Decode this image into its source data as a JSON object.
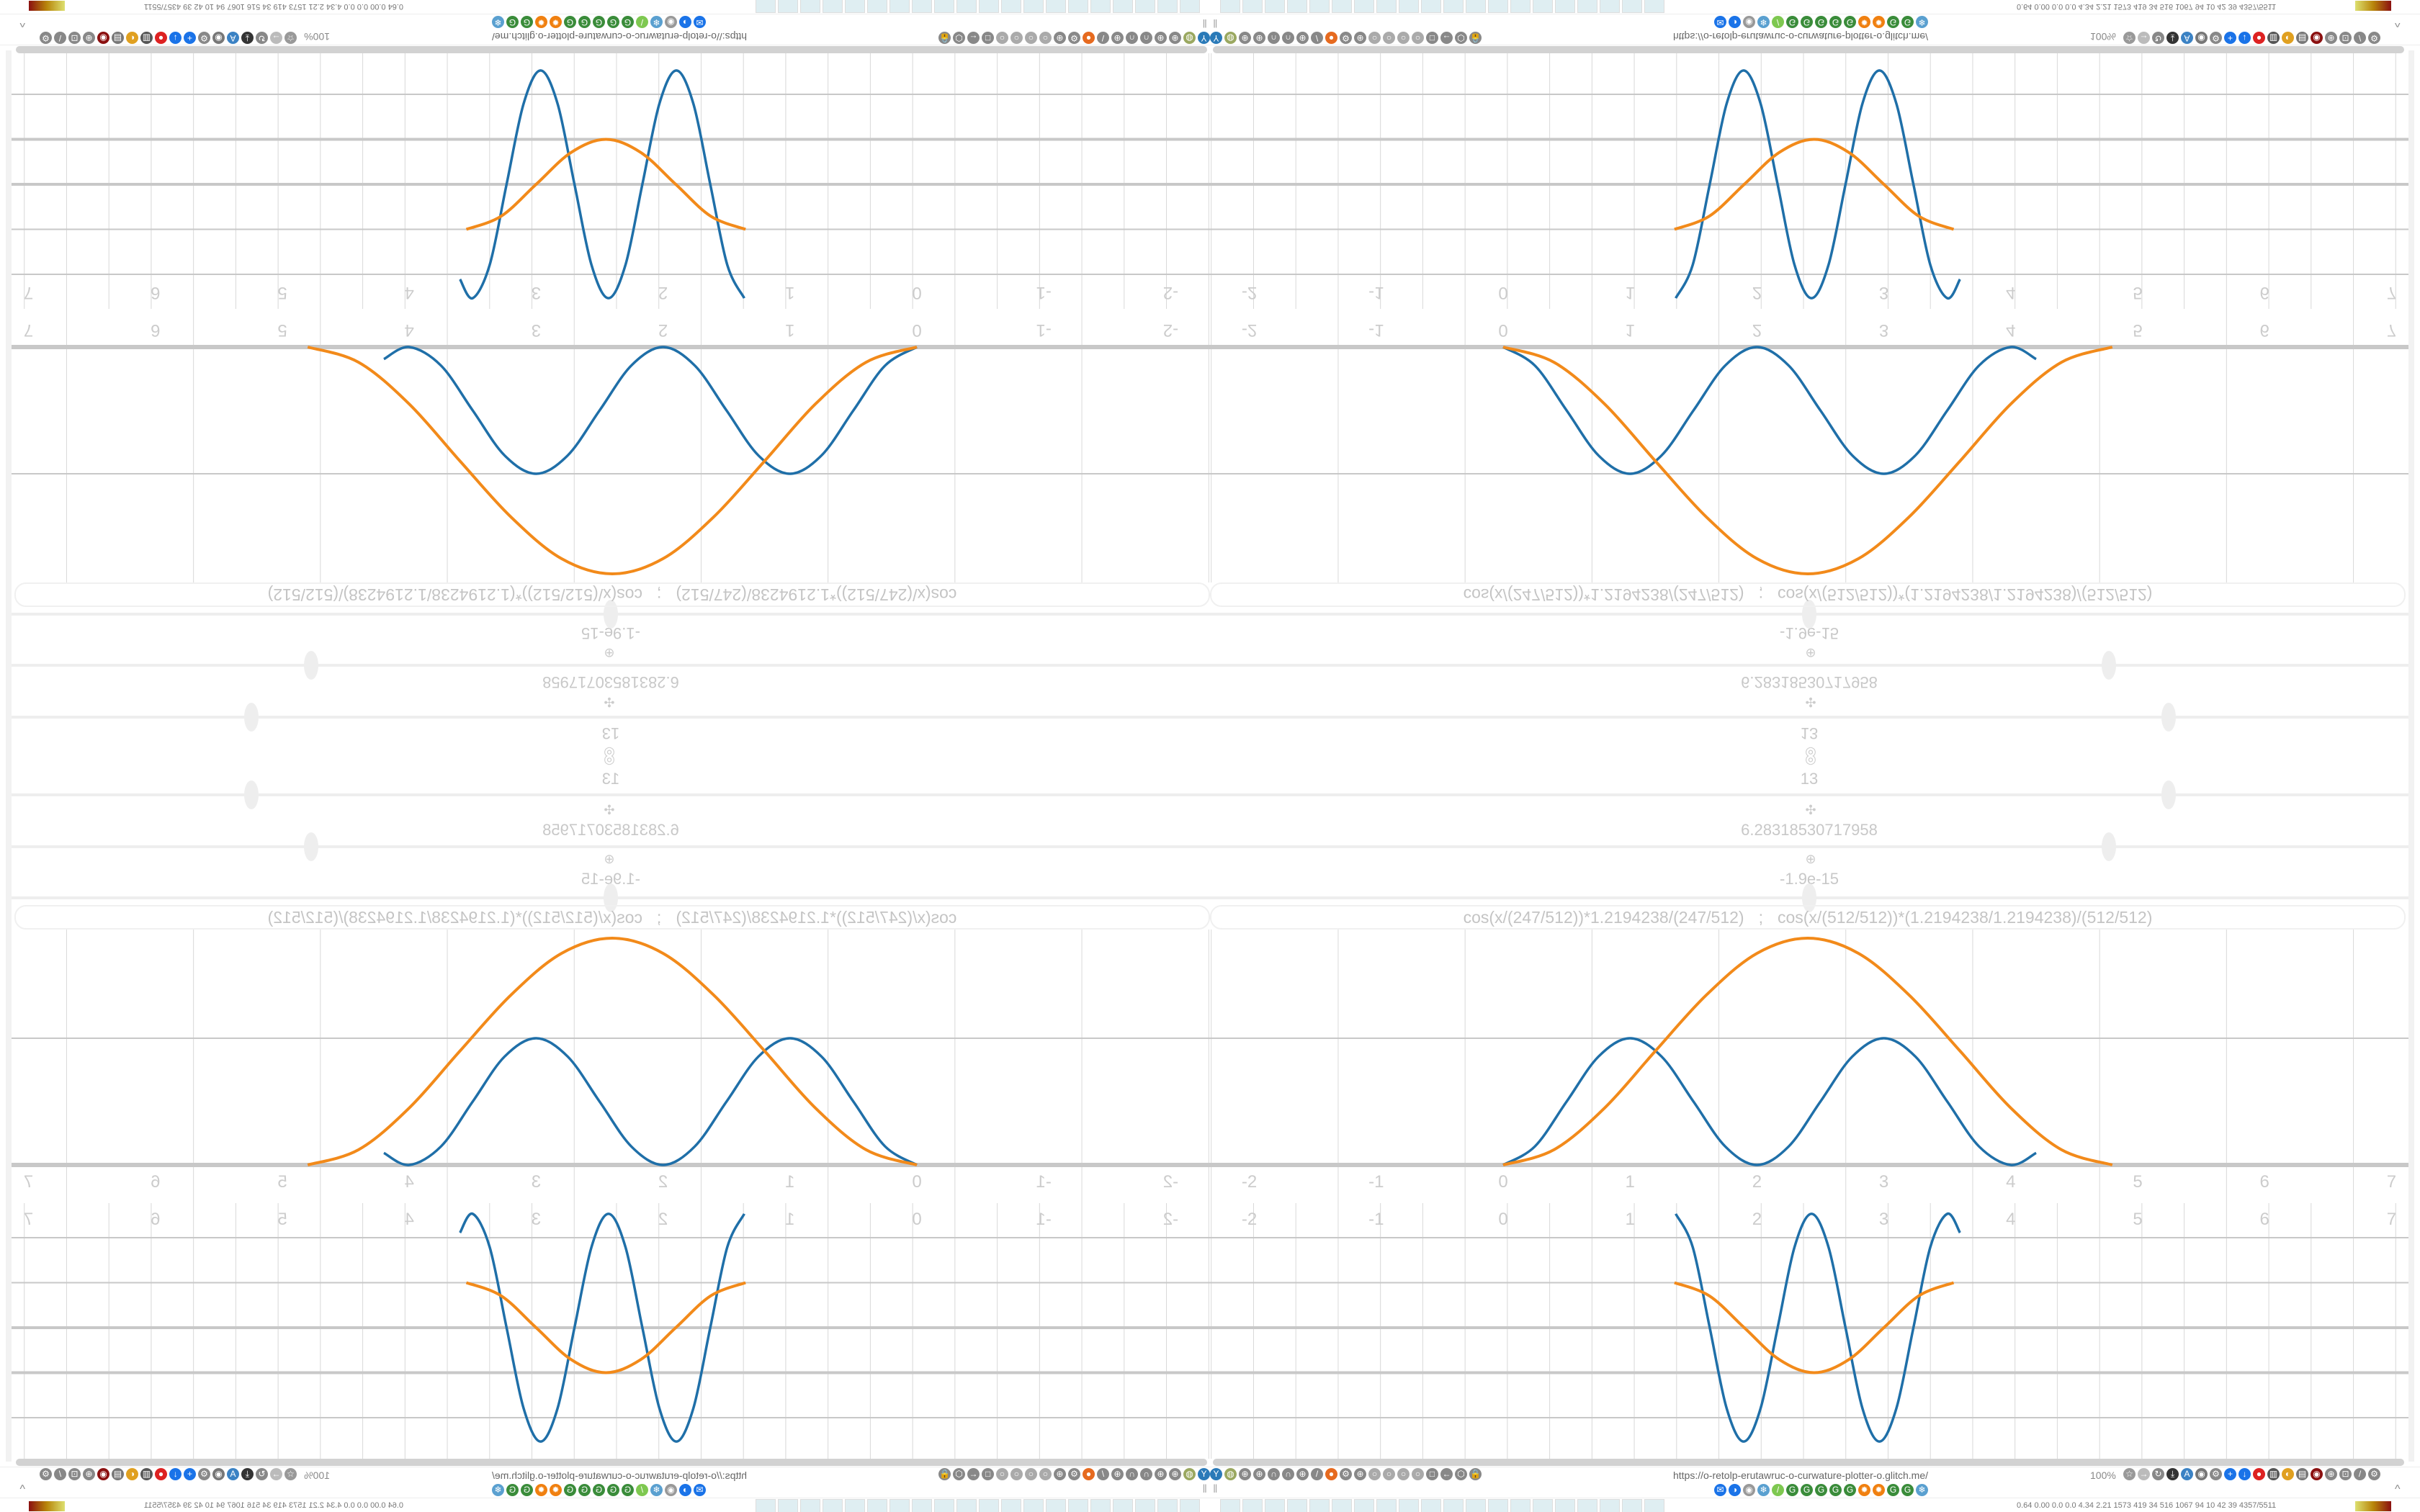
{
  "app": {
    "url": "https://o-retolp-erutawruc-o-curwature-plotter-o.glitch.me/",
    "zoom": "100%"
  },
  "controls": [
    {
      "icon": "target-icon",
      "glyph": "◎",
      "value": "13",
      "position_fraction": 0.8
    },
    {
      "icon": "move-icon",
      "glyph": "✣",
      "value": "6.28318530717958",
      "position_fraction": 0.75
    },
    {
      "icon": "rotate-icon",
      "glyph": "⊕",
      "value": "-1.9e-15",
      "position_fraction": 0.5
    }
  ],
  "formula": {
    "expr1": "cos(x/(247/512))*1.2194238/(247/512)",
    "separator": ";",
    "expr2": "cos(x/(512/512))*(1.2194238/1.2194238)/(512/512)"
  },
  "colors": {
    "blue": "#1f6fa8",
    "orange": "#f28a1a",
    "grid": "#d8d8d8",
    "axis": "#c8c8c8"
  },
  "chart_data": [
    {
      "type": "line",
      "x_ticks": [
        "-2",
        "-1",
        "0",
        "1",
        "2",
        "3",
        "4",
        "5",
        "6",
        "7"
      ],
      "xlim": [
        -2.3,
        7.2
      ],
      "ylim": [
        -0.3,
        1.9
      ],
      "grid": true,
      "series": [
        {
          "color": "#1f6fa8",
          "x": [
            0,
            0.25,
            0.5,
            0.75,
            1,
            1.25,
            1.5,
            1.75,
            2,
            2.25,
            2.5,
            2.75,
            3,
            3.25,
            3.5,
            3.75,
            4,
            4.2
          ],
          "y": [
            0,
            0.146,
            0.5,
            0.854,
            1,
            0.854,
            0.5,
            0.146,
            0,
            0.146,
            0.5,
            0.854,
            1,
            0.854,
            0.5,
            0.146,
            0,
            0.095
          ]
        },
        {
          "color": "#f28a1a",
          "x": [
            0,
            0.4,
            0.8,
            1.2,
            1.6,
            2.0,
            2.4,
            2.8,
            3.2,
            3.6,
            4.0,
            4.4,
            4.8
          ],
          "y": [
            0,
            0.12,
            0.45,
            0.9,
            1.34,
            1.67,
            1.79,
            1.67,
            1.34,
            0.9,
            0.45,
            0.12,
            0
          ]
        }
      ]
    },
    {
      "type": "line",
      "x_ticks": [
        "-2",
        "-1",
        "0",
        "1",
        "2",
        "3",
        "4",
        "5",
        "6",
        "7"
      ],
      "xlim": [
        -2.3,
        7.2
      ],
      "ylim": [
        -2.8,
        2.9
      ],
      "grid": true,
      "series": [
        {
          "color": "#1f6fa8",
          "x": [
            1.36,
            1.494,
            1.628,
            1.761,
            1.895,
            2.029,
            2.163,
            2.296,
            2.43,
            2.564,
            2.698,
            2.831,
            2.965,
            3.099,
            3.233,
            3.366,
            3.5,
            3.6
          ],
          "y": [
            2.53,
            1.79,
            0,
            -1.79,
            -2.53,
            -1.79,
            0,
            1.79,
            2.53,
            1.79,
            0,
            -1.79,
            -2.53,
            -1.79,
            0,
            1.79,
            2.53,
            2.11
          ]
        },
        {
          "color": "#f28a1a",
          "x": [
            1.35,
            1.625,
            1.9,
            2.175,
            2.45,
            2.725,
            3.0,
            3.275,
            3.55
          ],
          "y": [
            1,
            0.707,
            0,
            -0.707,
            -1,
            -0.707,
            0,
            0.707,
            1
          ]
        }
      ]
    }
  ],
  "toolbar": {
    "left_icons": [
      {
        "name": "y-icon",
        "glyph": "Y",
        "color": "#2a7ab8"
      },
      {
        "name": "globe-icon",
        "glyph": "◍",
        "color": "#9aa860"
      },
      {
        "name": "globe-icon",
        "glyph": "⊕",
        "color": "#888"
      },
      {
        "name": "globe-icon",
        "glyph": "⊕",
        "color": "#888"
      },
      {
        "name": "arch-icon",
        "glyph": "∩",
        "color": "#888"
      },
      {
        "name": "arch-icon",
        "glyph": "∩",
        "color": "#888"
      },
      {
        "name": "globe-icon",
        "glyph": "⊕",
        "color": "#888"
      },
      {
        "name": "pen-icon",
        "glyph": "/",
        "color": "#888"
      },
      {
        "name": "firefox-icon",
        "glyph": "●",
        "color": "#e66a1f"
      },
      {
        "name": "gear-icon",
        "glyph": "⚙",
        "color": "#888"
      },
      {
        "name": "globe-icon",
        "glyph": "⊕",
        "color": "#888"
      },
      {
        "name": "dot-icon",
        "glyph": "○",
        "color": "#aaa"
      },
      {
        "name": "dot-icon",
        "glyph": "○",
        "color": "#aaa"
      },
      {
        "name": "dot-icon",
        "glyph": "○",
        "color": "#aaa"
      },
      {
        "name": "dot-icon",
        "glyph": "○",
        "color": "#aaa"
      },
      {
        "name": "folder-icon",
        "glyph": "□",
        "color": "#888"
      },
      {
        "name": "back-icon",
        "glyph": "←",
        "color": "#888"
      },
      {
        "name": "shield-icon",
        "glyph": "⬡",
        "color": "#888"
      },
      {
        "name": "lock-icon",
        "glyph": "🔒",
        "color": "#888"
      }
    ],
    "right_icons": [
      {
        "name": "star-icon",
        "glyph": "☆",
        "color": "#999"
      },
      {
        "name": "forward-icon",
        "glyph": "→",
        "color": "#bbb"
      },
      {
        "name": "reload-icon",
        "glyph": "↻",
        "color": "#888"
      },
      {
        "name": "download-icon",
        "glyph": "⤓",
        "color": "#333"
      },
      {
        "name": "extension-icon",
        "glyph": "A",
        "color": "#3b82c4"
      },
      {
        "name": "extension-icon",
        "glyph": "◉",
        "color": "#777"
      },
      {
        "name": "settings-icon",
        "glyph": "⚙",
        "color": "#888"
      },
      {
        "name": "plus-icon",
        "glyph": "+",
        "color": "#1a73e8"
      },
      {
        "name": "arrow-icon",
        "glyph": "↓",
        "color": "#1a73e8"
      },
      {
        "name": "record-icon",
        "glyph": "●",
        "color": "#d22"
      },
      {
        "name": "trash-icon",
        "glyph": "▥",
        "color": "#555"
      },
      {
        "name": "extension-icon",
        "glyph": "◐",
        "color": "#e0a020"
      },
      {
        "name": "extension-icon",
        "glyph": "▤",
        "color": "#777"
      },
      {
        "name": "extension-icon",
        "glyph": "◉",
        "color": "#8b1010"
      },
      {
        "name": "globe-icon",
        "glyph": "⊕",
        "color": "#888"
      },
      {
        "name": "puzzle-icon",
        "glyph": "⊡",
        "color": "#888"
      },
      {
        "name": "wrench-icon",
        "glyph": "/",
        "color": "#888"
      },
      {
        "name": "gear-icon",
        "glyph": "⚙",
        "color": "#888"
      }
    ],
    "bookmarks": [
      {
        "name": "mail-icon",
        "glyph": "✉",
        "color": "#1a73e8"
      },
      {
        "name": "moon-icon",
        "glyph": "◑",
        "color": "#1a73e8"
      },
      {
        "name": "extension-icon",
        "glyph": "◉",
        "color": "#999"
      },
      {
        "name": "snowflake-icon",
        "glyph": "❄",
        "color": "#5aa0d0"
      },
      {
        "name": "leaf-icon",
        "glyph": "/",
        "color": "#7ec850"
      },
      {
        "name": "google-icon",
        "glyph": "G",
        "color": "#3a8c3a"
      },
      {
        "name": "google-icon",
        "glyph": "G",
        "color": "#3a8c3a"
      },
      {
        "name": "google-icon",
        "glyph": "G",
        "color": "#3a8c3a"
      },
      {
        "name": "google-icon",
        "glyph": "G",
        "color": "#3a8c3a"
      },
      {
        "name": "google-icon",
        "glyph": "G",
        "color": "#3a8c3a"
      },
      {
        "name": "sun-icon",
        "glyph": "✹",
        "color": "#f08010"
      },
      {
        "name": "sun-icon",
        "glyph": "✹",
        "color": "#f08010"
      },
      {
        "name": "google-icon",
        "glyph": "G",
        "color": "#3a8c3a"
      },
      {
        "name": "google-icon",
        "glyph": "G",
        "color": "#3a8c3a"
      },
      {
        "name": "snowflake-icon",
        "glyph": "❄",
        "color": "#5aa0d0"
      }
    ],
    "pause_icon": "‖",
    "chevron": "^"
  },
  "taskbar": {
    "stats": "0.64 0.00 0.0 0.0 4.34 2.21 1573 419 34 516 1067 94 10 42 39 4357/5511",
    "app_count": 20
  }
}
